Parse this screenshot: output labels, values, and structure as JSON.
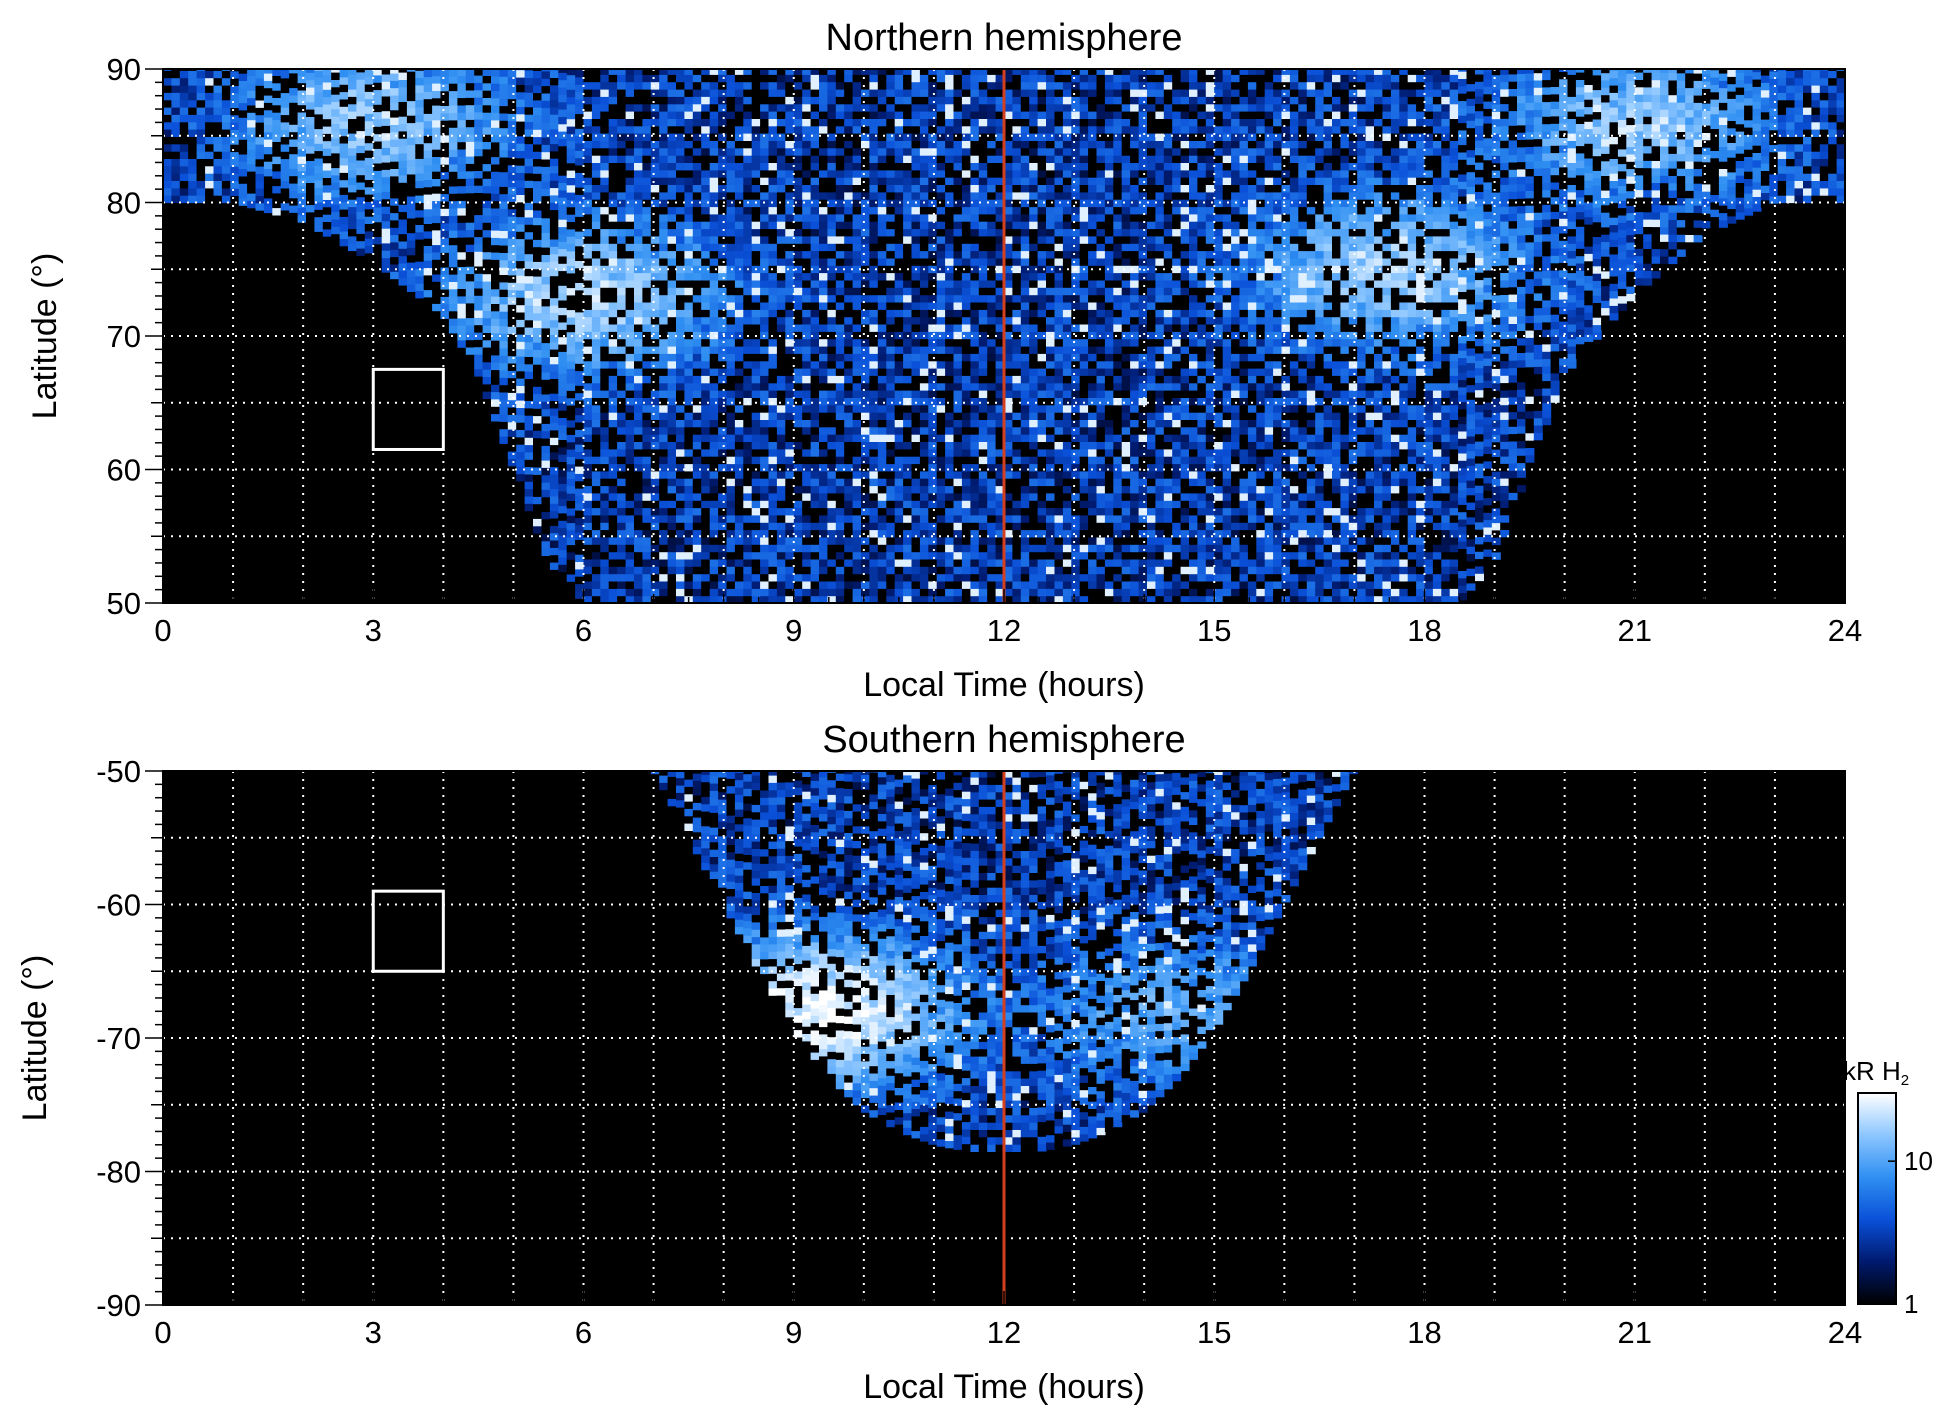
{
  "chart_data": [
    {
      "type": "heatmap",
      "title": "Northern hemisphere",
      "xlabel": "Local Time (hours)",
      "ylabel": "Latitude (°)",
      "xlim": [
        0,
        24
      ],
      "ylim": [
        50,
        90
      ],
      "xticks": [
        "0",
        "3",
        "6",
        "9",
        "12",
        "15",
        "18",
        "21",
        "24"
      ],
      "yticks": [
        "50",
        "60",
        "70",
        "80",
        "90"
      ],
      "x_tick_values": [
        0,
        3,
        6,
        9,
        12,
        15,
        18,
        21,
        24
      ],
      "y_tick_values": [
        50,
        60,
        70,
        80,
        90
      ],
      "x_grid_step": 1,
      "y_grid_step": 5,
      "grid": true,
      "marker_line_x": 12,
      "marker_line_color": "#d2401f",
      "box": {
        "x": [
          3,
          4
        ],
        "y": [
          61.5,
          67.5
        ]
      },
      "coverage_boundary": {
        "hour": [
          0,
          1,
          2,
          3,
          4,
          4.5,
          5,
          5.5,
          6,
          7,
          8,
          9,
          10,
          11,
          12,
          13,
          14,
          15,
          16,
          17,
          18,
          18.5,
          19,
          19.5,
          20,
          21,
          22,
          23,
          24
        ],
        "min_latitude": [
          80,
          80,
          78.5,
          75.5,
          71.5,
          67,
          60,
          53,
          50,
          50,
          50,
          50,
          50,
          50,
          50,
          50,
          50,
          50,
          50,
          50,
          50,
          50,
          53,
          60,
          67,
          73,
          77.5,
          80,
          80
        ]
      },
      "bright_regions": [
        {
          "hour_center": 6,
          "latitude_center": 73,
          "intensity_kR": 15
        },
        {
          "hour_center": 17.5,
          "latitude_center": 75,
          "intensity_kR": 14
        },
        {
          "hour_center": 3,
          "latitude_center": 86,
          "intensity_kR": 12
        },
        {
          "hour_center": 21,
          "latitude_center": 86,
          "intensity_kR": 12
        }
      ]
    },
    {
      "type": "heatmap",
      "title": "Southern hemisphere",
      "xlabel": "Local Time (hours)",
      "ylabel": "Latitude (°)",
      "xlim": [
        0,
        24
      ],
      "ylim": [
        -90,
        -50
      ],
      "xticks": [
        "0",
        "3",
        "6",
        "9",
        "12",
        "15",
        "18",
        "21",
        "24"
      ],
      "yticks": [
        "-50",
        "-60",
        "-70",
        "-80",
        "-90"
      ],
      "x_tick_values": [
        0,
        3,
        6,
        9,
        12,
        15,
        18,
        21,
        24
      ],
      "y_tick_values": [
        -50,
        -60,
        -70,
        -80,
        -90
      ],
      "x_grid_step": 1,
      "y_grid_step": 5,
      "grid": true,
      "marker_line_x": 12,
      "marker_line_color": "#d2401f",
      "box": {
        "x": [
          3,
          4
        ],
        "y": [
          -65,
          -59
        ]
      },
      "coverage_boundary": {
        "hour": [
          7,
          7.5,
          8,
          8.5,
          9,
          9.5,
          10,
          10.5,
          11,
          11.5,
          12,
          12.5,
          13,
          13.5,
          14,
          14.5,
          15,
          15.5,
          16,
          16.5,
          17
        ],
        "max_southern_latitude": [
          -50,
          -55,
          -60,
          -65,
          -69.5,
          -73,
          -75.5,
          -77,
          -78,
          -78.5,
          -78.5,
          -78.5,
          -78,
          -77,
          -75.5,
          -73,
          -69.5,
          -65,
          -60,
          -55,
          -50
        ]
      },
      "bright_regions": [
        {
          "hour_center": 9.3,
          "latitude_center": -68,
          "intensity_kR": 25
        },
        {
          "hour_center": 14.5,
          "latitude_center": -68,
          "intensity_kR": 8
        }
      ]
    }
  ],
  "colorbar": {
    "label": "kR H",
    "subscript": "2",
    "scale": "log",
    "range": [
      1,
      30
    ],
    "ticks": [
      "10",
      "1"
    ],
    "tick_values": [
      10,
      1
    ],
    "colors": [
      "#000000",
      "#001a6e",
      "#0a50d8",
      "#2f8ff2",
      "#8cc6ff",
      "#ffffff"
    ]
  }
}
